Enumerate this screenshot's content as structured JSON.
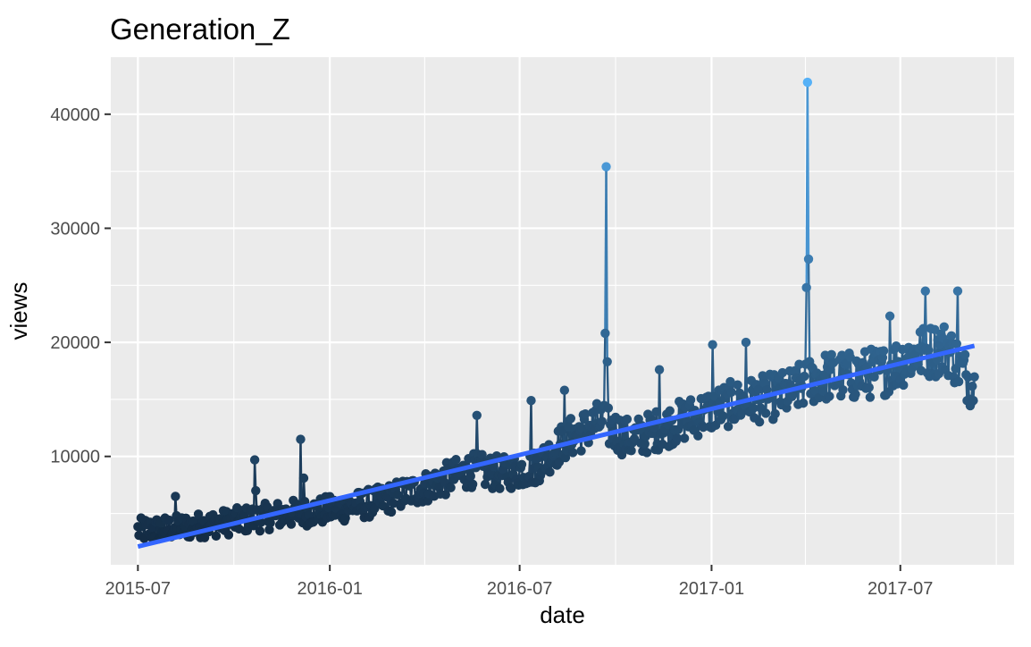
{
  "chart_data": {
    "type": "line",
    "title": "Generation_Z",
    "xlabel": "date",
    "ylabel": "views",
    "xlim": [
      "2015-06-05",
      "2017-10-18"
    ],
    "ylim": [
      500,
      45000
    ],
    "x_ticks": [
      {
        "date": "2015-07-01",
        "label": "2015-07"
      },
      {
        "date": "2016-01-01",
        "label": "2016-01"
      },
      {
        "date": "2016-07-01",
        "label": "2016-07"
      },
      {
        "date": "2017-01-01",
        "label": "2017-01"
      },
      {
        "date": "2017-07-01",
        "label": "2017-07"
      }
    ],
    "x_minor_ticks": [
      "2015-10-01",
      "2016-04-01",
      "2016-10-01",
      "2017-04-01",
      "2017-10-01"
    ],
    "y_ticks": [
      {
        "value": 10000,
        "label": "10000"
      },
      {
        "value": 20000,
        "label": "20000"
      },
      {
        "value": 30000,
        "label": "30000"
      },
      {
        "value": 40000,
        "label": "40000"
      }
    ],
    "y_minor_ticks": [
      5000,
      15000,
      25000,
      35000
    ],
    "grid": true,
    "background": "#ebebeb",
    "color_scale": {
      "low": "#132b43",
      "high": "#56b1f7",
      "min": 2500,
      "max": 42800
    },
    "trend": {
      "x": [
        "2015-07-01",
        "2017-09-10"
      ],
      "y": [
        2100,
        19700
      ],
      "color": "#3366ff"
    },
    "series": [
      {
        "x_start": "2015-07-01",
        "x_end": "2017-09-10",
        "anchors": [
          [
            "2015-07-01",
            3500
          ],
          [
            "2015-08-15",
            3800
          ],
          [
            "2015-10-01",
            4300
          ],
          [
            "2015-11-15",
            4900
          ],
          [
            "2016-01-01",
            5300
          ],
          [
            "2016-02-15",
            6000
          ],
          [
            "2016-04-01",
            7300
          ],
          [
            "2016-05-15",
            8800
          ],
          [
            "2016-06-15",
            8500
          ],
          [
            "2016-07-15",
            9000
          ],
          [
            "2016-08-15",
            11500
          ],
          [
            "2016-09-15",
            13000
          ],
          [
            "2016-10-15",
            11500
          ],
          [
            "2016-11-15",
            12500
          ],
          [
            "2016-12-15",
            13500
          ],
          [
            "2017-01-15",
            14500
          ],
          [
            "2017-02-15",
            15000
          ],
          [
            "2017-03-15",
            15500
          ],
          [
            "2017-04-15",
            17000
          ],
          [
            "2017-05-15",
            17000
          ],
          [
            "2017-06-15",
            17500
          ],
          [
            "2017-07-15",
            19000
          ],
          [
            "2017-08-15",
            19500
          ],
          [
            "2017-09-10",
            16000
          ]
        ],
        "noise": 1800,
        "spikes": [
          [
            "2015-08-06",
            6500
          ],
          [
            "2015-10-21",
            9700
          ],
          [
            "2015-10-22",
            7000
          ],
          [
            "2015-12-04",
            11500
          ],
          [
            "2015-12-07",
            8100
          ],
          [
            "2016-05-21",
            13600
          ],
          [
            "2016-07-12",
            14900
          ],
          [
            "2016-08-13",
            15800
          ],
          [
            "2016-09-21",
            20800
          ],
          [
            "2016-09-22",
            35400
          ],
          [
            "2016-09-23",
            18300
          ],
          [
            "2016-11-12",
            17600
          ],
          [
            "2017-01-02",
            19800
          ],
          [
            "2017-02-03",
            20000
          ],
          [
            "2017-04-02",
            24800
          ],
          [
            "2017-04-03",
            42800
          ],
          [
            "2017-04-04",
            27300
          ],
          [
            "2017-06-21",
            22300
          ],
          [
            "2017-07-25",
            24500
          ],
          [
            "2017-08-25",
            24500
          ]
        ]
      }
    ]
  }
}
